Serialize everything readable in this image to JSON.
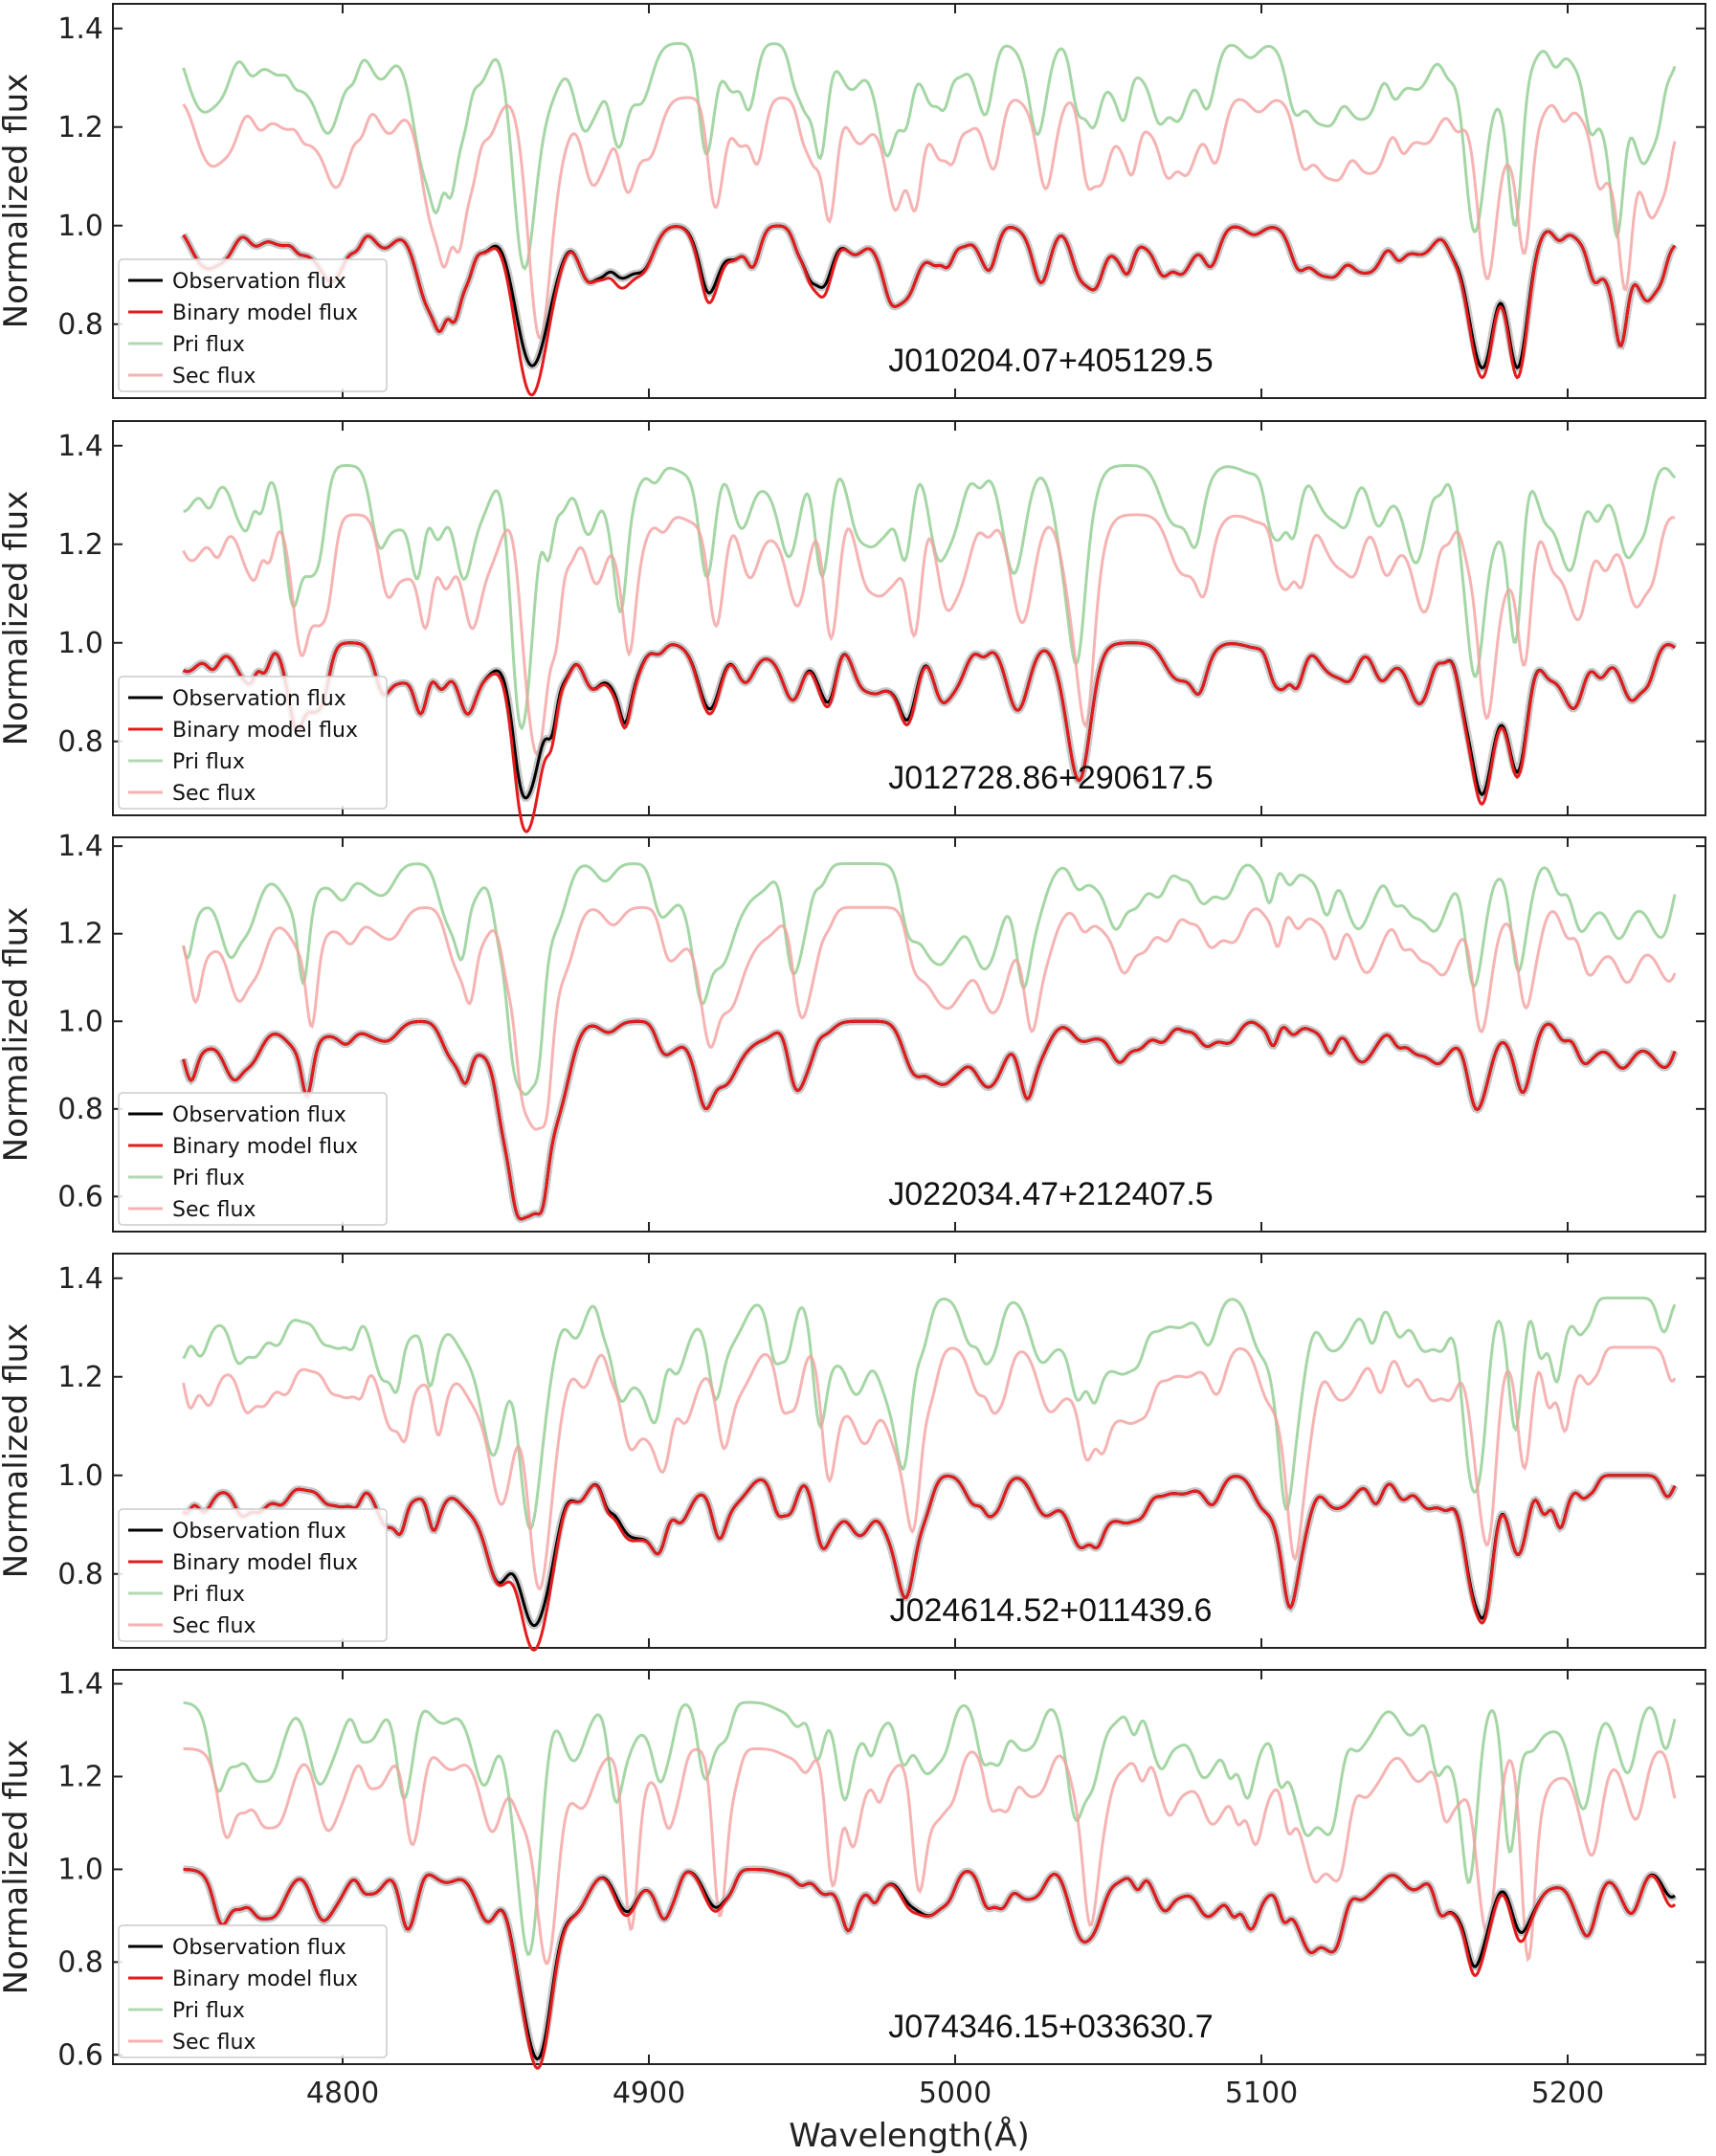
{
  "figure": {
    "xlabel": "Wavelength(Å)",
    "ylabel": "Normalized flux"
  },
  "legend": {
    "entries": [
      {
        "name": "Observation flux",
        "color": "#000000",
        "opacity": 1.0
      },
      {
        "name": "Binary model flux",
        "color": "#e41a1c",
        "opacity": 1.0
      },
      {
        "name": "Pri flux",
        "color": "#7fbf7f",
        "opacity": 0.6
      },
      {
        "name": "Sec flux",
        "color": "#f08080",
        "opacity": 0.6
      }
    ],
    "placement": "lower-left"
  },
  "colors": {
    "observation": "#000000",
    "model": "#e41a1c",
    "primary": "#8fcc8f",
    "secondary": "#f4a0a0",
    "obs_band": "#b0b0b0"
  },
  "chart_data": [
    {
      "type": "line",
      "label": "J010204.07+405129.5",
      "xlim": [
        4725,
        5245
      ],
      "ylim": [
        0.65,
        1.45
      ],
      "xticks": [
        4800,
        4900,
        5000,
        5100,
        5200
      ],
      "yticks": [
        0.8,
        1.0,
        1.2,
        1.4
      ],
      "ytick_labels": [
        "0.8",
        "1.0",
        "1.2",
        "1.4"
      ],
      "show_xtick_labels": false,
      "continuum": {
        "obs": 1.0,
        "pri": 1.37,
        "sec": 1.26
      },
      "lines": [
        {
          "x": 4861,
          "depth_obs": 0.24,
          "depth_model": 0.3,
          "width": 5,
          "pri_depth": 0.4,
          "sec_depth": 0.4,
          "pri_shift": -2,
          "sec_shift": 3
        },
        {
          "x": 4891,
          "depth_obs": 0.1,
          "depth_model": 0.12,
          "width": 4,
          "pri_depth": 0.2,
          "sec_depth": 0.18,
          "pri_shift": -1,
          "sec_shift": 2
        },
        {
          "x": 4920,
          "depth_obs": 0.12,
          "depth_model": 0.14,
          "width": 3.5,
          "pri_depth": 0.2,
          "sec_depth": 0.2,
          "pri_shift": -1,
          "sec_shift": 2
        },
        {
          "x": 4957,
          "depth_obs": 0.09,
          "depth_model": 0.11,
          "width": 3,
          "pri_depth": 0.18,
          "sec_depth": 0.2,
          "pri_shift": -1,
          "sec_shift": 2
        },
        {
          "x": 4985,
          "depth_obs": 0.12,
          "depth_model": 0.12,
          "width": 3,
          "pri_depth": 0.14,
          "sec_depth": 0.2,
          "pri_shift": -1,
          "sec_shift": 2
        },
        {
          "x": 5041,
          "depth_obs": 0.1,
          "depth_model": 0.1,
          "width": 3,
          "pri_depth": 0.12,
          "sec_depth": 0.15,
          "pri_shift": -1,
          "sec_shift": 2
        },
        {
          "x": 5171,
          "depth_obs": 0.22,
          "depth_model": 0.24,
          "width": 4,
          "pri_depth": 0.3,
          "sec_depth": 0.25,
          "pri_shift": -2,
          "sec_shift": 2
        },
        {
          "x": 5184,
          "depth_obs": 0.24,
          "depth_model": 0.26,
          "width": 3,
          "pri_depth": 0.3,
          "sec_depth": 0.25,
          "pri_shift": -1,
          "sec_shift": 2
        }
      ]
    },
    {
      "type": "line",
      "label": "J012728.86+290617.5",
      "xlim": [
        4725,
        5245
      ],
      "ylim": [
        0.65,
        1.45
      ],
      "xticks": [
        4800,
        4900,
        5000,
        5100,
        5200
      ],
      "yticks": [
        0.8,
        1.0,
        1.2,
        1.4
      ],
      "ytick_labels": [
        "0.8",
        "1.0",
        "1.2",
        "1.4"
      ],
      "show_xtick_labels": false,
      "continuum": {
        "obs": 1.0,
        "pri": 1.36,
        "sec": 1.26
      },
      "lines": [
        {
          "x": 4861,
          "depth_obs": 0.25,
          "depth_model": 0.32,
          "width": 5,
          "pri_depth": 0.42,
          "sec_depth": 0.42,
          "pri_shift": -2,
          "sec_shift": 3
        },
        {
          "x": 4891,
          "depth_obs": 0.1,
          "depth_model": 0.11,
          "width": 4,
          "pri_depth": 0.2,
          "sec_depth": 0.18,
          "pri_shift": -1,
          "sec_shift": 2
        },
        {
          "x": 4920,
          "depth_obs": 0.13,
          "depth_model": 0.14,
          "width": 3.5,
          "pri_depth": 0.22,
          "sec_depth": 0.22,
          "pri_shift": -1,
          "sec_shift": 2
        },
        {
          "x": 4957,
          "depth_obs": 0.09,
          "depth_model": 0.1,
          "width": 3,
          "pri_depth": 0.18,
          "sec_depth": 0.2,
          "pri_shift": -1,
          "sec_shift": 2
        },
        {
          "x": 4985,
          "depth_obs": 0.12,
          "depth_model": 0.13,
          "width": 3,
          "pri_depth": 0.14,
          "sec_depth": 0.2,
          "pri_shift": -1,
          "sec_shift": 2
        },
        {
          "x": 5041,
          "depth_obs": 0.1,
          "depth_model": 0.1,
          "width": 3,
          "pri_depth": 0.12,
          "sec_depth": 0.15,
          "pri_shift": -1,
          "sec_shift": 2
        },
        {
          "x": 5171,
          "depth_obs": 0.21,
          "depth_model": 0.23,
          "width": 4,
          "pri_depth": 0.3,
          "sec_depth": 0.25,
          "pri_shift": -2,
          "sec_shift": 2
        },
        {
          "x": 5184,
          "depth_obs": 0.22,
          "depth_model": 0.23,
          "width": 3,
          "pri_depth": 0.3,
          "sec_depth": 0.25,
          "pri_shift": -1,
          "sec_shift": 2
        }
      ]
    },
    {
      "type": "line",
      "label": "J022034.47+212407.5",
      "xlim": [
        4725,
        5245
      ],
      "ylim": [
        0.52,
        1.42
      ],
      "xticks": [
        4800,
        4900,
        5000,
        5100,
        5200
      ],
      "yticks": [
        0.6,
        0.8,
        1.0,
        1.2,
        1.4
      ],
      "ytick_labels": [
        "0.6",
        "0.8",
        "1.0",
        "1.2",
        "1.4"
      ],
      "show_xtick_labels": false,
      "continuum": {
        "obs": 1.0,
        "pri": 1.36,
        "sec": 1.26
      },
      "lines": [
        {
          "x": 4861,
          "depth_obs": 0.44,
          "depth_model": 0.44,
          "width": 7,
          "pri_depth": 0.52,
          "sec_depth": 0.5,
          "pri_shift": -1,
          "sec_shift": 2
        },
        {
          "x": 4957,
          "depth_obs": 0.03,
          "depth_model": 0.03,
          "width": 3,
          "pri_depth": 0.05,
          "sec_depth": 0.05,
          "pri_shift": -1,
          "sec_shift": 1
        },
        {
          "x": 4985,
          "depth_obs": 0.05,
          "depth_model": 0.05,
          "width": 3,
          "pri_depth": 0.06,
          "sec_depth": 0.06,
          "pri_shift": -1,
          "sec_shift": 1
        },
        {
          "x": 5041,
          "depth_obs": 0.04,
          "depth_model": 0.04,
          "width": 3,
          "pri_depth": 0.05,
          "sec_depth": 0.05,
          "pri_shift": -1,
          "sec_shift": 1
        },
        {
          "x": 5171,
          "depth_obs": 0.1,
          "depth_model": 0.1,
          "width": 4,
          "pri_depth": 0.12,
          "sec_depth": 0.12,
          "pri_shift": -1,
          "sec_shift": 1
        },
        {
          "x": 5184,
          "depth_obs": 0.07,
          "depth_model": 0.07,
          "width": 3,
          "pri_depth": 0.1,
          "sec_depth": 0.1,
          "pri_shift": -1,
          "sec_shift": 1
        }
      ]
    },
    {
      "type": "line",
      "label": "J024614.52+011439.6",
      "xlim": [
        4725,
        5245
      ],
      "ylim": [
        0.65,
        1.45
      ],
      "xticks": [
        4800,
        4900,
        5000,
        5100,
        5200
      ],
      "yticks": [
        0.8,
        1.0,
        1.2,
        1.4
      ],
      "ytick_labels": [
        "0.8",
        "1.0",
        "1.2",
        "1.4"
      ],
      "show_xtick_labels": false,
      "continuum": {
        "obs": 1.0,
        "pri": 1.36,
        "sec": 1.26
      },
      "lines": [
        {
          "x": 4862,
          "depth_obs": 0.25,
          "depth_model": 0.3,
          "width": 5,
          "pri_depth": 0.38,
          "sec_depth": 0.4,
          "pri_shift": -1,
          "sec_shift": 2
        },
        {
          "x": 4891,
          "depth_obs": 0.08,
          "depth_model": 0.09,
          "width": 4,
          "pri_depth": 0.16,
          "sec_depth": 0.15,
          "pri_shift": -1,
          "sec_shift": 2
        },
        {
          "x": 4957,
          "depth_obs": 0.08,
          "depth_model": 0.08,
          "width": 3,
          "pri_depth": 0.15,
          "sec_depth": 0.16,
          "pri_shift": -1,
          "sec_shift": 2
        },
        {
          "x": 4985,
          "depth_obs": 0.1,
          "depth_model": 0.1,
          "width": 3,
          "pri_depth": 0.12,
          "sec_depth": 0.16,
          "pri_shift": -1,
          "sec_shift": 2
        },
        {
          "x": 5041,
          "depth_obs": 0.08,
          "depth_model": 0.08,
          "width": 3,
          "pri_depth": 0.1,
          "sec_depth": 0.12,
          "pri_shift": -1,
          "sec_shift": 2
        },
        {
          "x": 5171,
          "depth_obs": 0.18,
          "depth_model": 0.19,
          "width": 4,
          "pri_depth": 0.24,
          "sec_depth": 0.22,
          "pri_shift": -2,
          "sec_shift": 2
        },
        {
          "x": 5184,
          "depth_obs": 0.13,
          "depth_model": 0.13,
          "width": 3,
          "pri_depth": 0.22,
          "sec_depth": 0.2,
          "pri_shift": -1,
          "sec_shift": 2
        }
      ]
    },
    {
      "type": "line",
      "label": "J074346.15+033630.7",
      "xlim": [
        4725,
        5245
      ],
      "ylim": [
        0.58,
        1.43
      ],
      "xticks": [
        4800,
        4900,
        5000,
        5100,
        5200
      ],
      "yticks": [
        0.6,
        0.8,
        1.0,
        1.2,
        1.4
      ],
      "ytick_labels": [
        "0.6",
        "0.8",
        "1.0",
        "1.2",
        "1.4"
      ],
      "show_xtick_labels": true,
      "xtick_labels": [
        "4800",
        "4900",
        "5000",
        "5100",
        "5200"
      ],
      "continuum": {
        "obs": 1.0,
        "pri": 1.36,
        "sec": 1.26
      },
      "lines": [
        {
          "x": 4864,
          "depth_obs": 0.36,
          "depth_model": 0.38,
          "width": 5,
          "pri_depth": 0.45,
          "sec_depth": 0.4,
          "pri_shift": -3,
          "sec_shift": 3
        },
        {
          "x": 4891,
          "depth_obs": 0.04,
          "depth_model": 0.05,
          "width": 3,
          "pri_depth": 0.16,
          "sec_depth": 0.3,
          "pri_shift": -2,
          "sec_shift": 3
        },
        {
          "x": 4920,
          "depth_obs": 0.05,
          "depth_model": 0.06,
          "width": 3,
          "pri_depth": 0.14,
          "sec_depth": 0.3,
          "pri_shift": -2,
          "sec_shift": 3
        },
        {
          "x": 4957,
          "depth_obs": 0.05,
          "depth_model": 0.05,
          "width": 3,
          "pri_depth": 0.12,
          "sec_depth": 0.28,
          "pri_shift": -2,
          "sec_shift": 3
        },
        {
          "x": 4985,
          "depth_obs": 0.05,
          "depth_model": 0.06,
          "width": 3,
          "pri_depth": 0.1,
          "sec_depth": 0.24,
          "pri_shift": -2,
          "sec_shift": 3
        },
        {
          "x": 5041,
          "depth_obs": 0.05,
          "depth_model": 0.05,
          "width": 3,
          "pri_depth": 0.1,
          "sec_depth": 0.2,
          "pri_shift": -2,
          "sec_shift": 3
        },
        {
          "x": 5171,
          "depth_obs": 0.17,
          "depth_model": 0.19,
          "width": 4,
          "pri_depth": 0.3,
          "sec_depth": 0.38,
          "pri_shift": -3,
          "sec_shift": 3
        },
        {
          "x": 5184,
          "depth_obs": 0.1,
          "depth_model": 0.12,
          "width": 3,
          "pri_depth": 0.3,
          "sec_depth": 0.38,
          "pri_shift": -3,
          "sec_shift": 3
        },
        {
          "x": 5234,
          "depth_obs": 0.06,
          "depth_model": 0.08,
          "width": 3,
          "pri_depth": 0.1,
          "sec_depth": 0.12,
          "pri_shift": -2,
          "sec_shift": 2
        }
      ]
    }
  ]
}
